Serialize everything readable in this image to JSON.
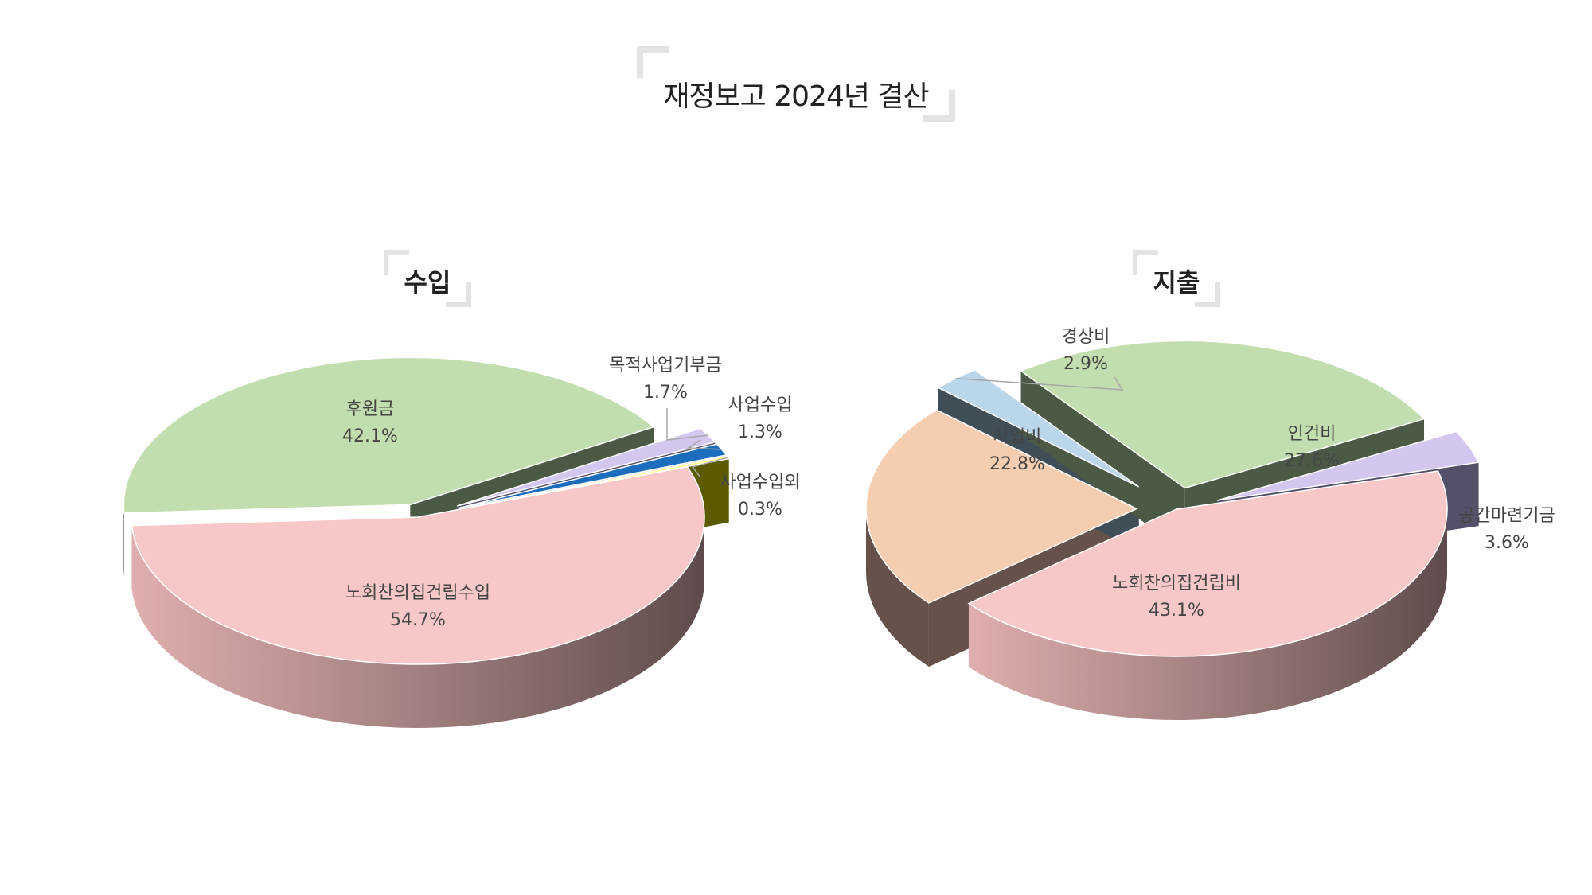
{
  "title": "재정보고 2024년 결산",
  "chart_data": [
    {
      "type": "pie",
      "title": "수입",
      "slices": [
        {
          "label": "노회찬의집건립수입",
          "value": 54.7,
          "display": "54.7%",
          "color": "#f8c8c8",
          "edge": "#5e4b4b"
        },
        {
          "label": "후원금",
          "value": 42.1,
          "display": "42.1%",
          "color": "#c3deae",
          "edge": "#4b5a45"
        },
        {
          "label": "목적사업기부금",
          "value": 1.7,
          "display": "1.7%",
          "color": "#d3c6ef",
          "edge": "#55506a"
        },
        {
          "label": "사업수입",
          "value": 1.3,
          "display": "1.3%",
          "color": "#1d6dbf",
          "edge": "#133e6b"
        },
        {
          "label": "사업수입외",
          "value": 0.3,
          "display": "0.3%",
          "color": "#ffff8a",
          "edge": "#5c5a00"
        }
      ]
    },
    {
      "type": "pie",
      "title": "지출",
      "slices": [
        {
          "label": "노회찬의집건립비",
          "value": 43.1,
          "display": "43.1%",
          "color": "#f8c8c8",
          "edge": "#5e4b4b"
        },
        {
          "label": "사업비",
          "value": 22.8,
          "display": "22.8%",
          "color": "#f5cdb0",
          "edge": "#66524a"
        },
        {
          "label": "경상비",
          "value": 2.9,
          "display": "2.9%",
          "color": "#bad6ea",
          "edge": "#3f4e57"
        },
        {
          "label": "인건비",
          "value": 27.6,
          "display": "27.6%",
          "color": "#c3deae",
          "edge": "#4b5a45"
        },
        {
          "label": "공간마련기금",
          "value": 3.6,
          "display": "3.6%",
          "color": "#d3c6ef",
          "edge": "#55506a"
        }
      ]
    }
  ]
}
